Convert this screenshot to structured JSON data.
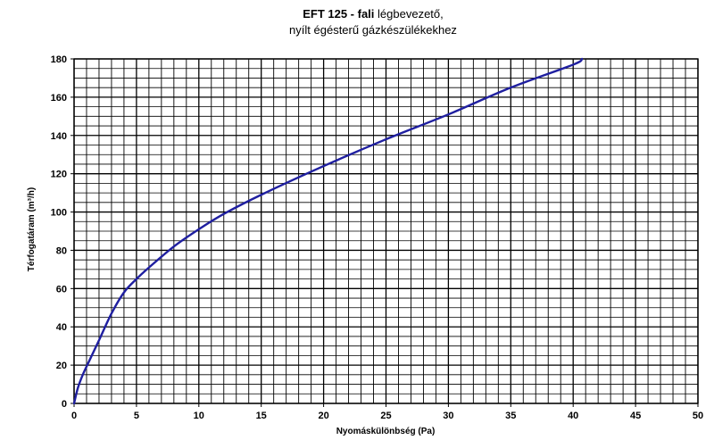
{
  "chart_data": {
    "type": "line",
    "title_bold": "EFT 125 - fali",
    "title_rest": " légbevezető,",
    "subtitle": "nyílt égésterű gázkészülékekhez",
    "xlabel": "Nyomáskülönbség (Pa)",
    "ylabel": "Térfogatáram (m³/h)",
    "xlim": [
      0,
      50
    ],
    "ylim": [
      0,
      180
    ],
    "x_ticks": [
      0,
      5,
      10,
      15,
      20,
      25,
      30,
      35,
      40,
      45,
      50
    ],
    "y_ticks": [
      0,
      20,
      40,
      60,
      80,
      100,
      120,
      140,
      160,
      180
    ],
    "grid": true,
    "series": [
      {
        "color": "#1f1fa0",
        "x": [
          0,
          0.3,
          0.7,
          1.2,
          2,
          3,
          4,
          5,
          6,
          8,
          10,
          12,
          15,
          20,
          25,
          30,
          35,
          40,
          40.7
        ],
        "y": [
          0,
          8,
          15,
          22,
          33,
          47,
          58,
          65,
          71,
          82,
          91,
          99,
          109,
          124,
          138,
          151,
          165,
          177,
          180
        ]
      }
    ]
  }
}
